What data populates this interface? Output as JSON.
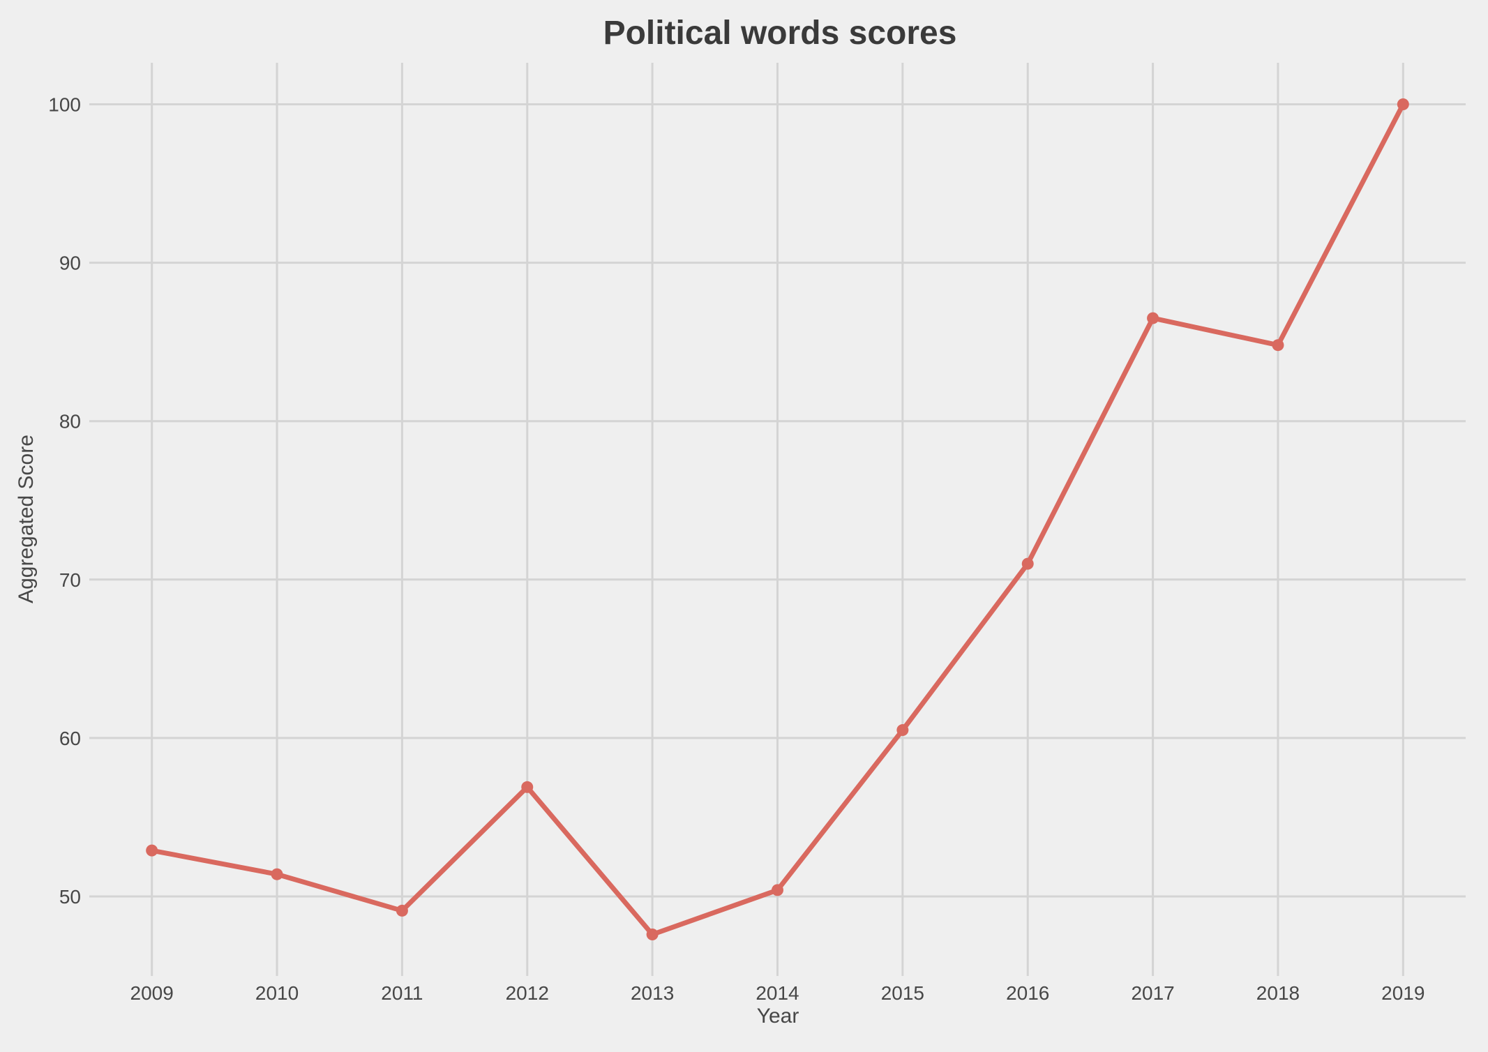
{
  "title": "Political words scores",
  "colors": {
    "background": "#EFEFEF",
    "gridline": "#D4D4D4",
    "line": "#D9695F",
    "marker": "#D9695F",
    "title_text": "#3A3A3A",
    "axis_text": "#474747",
    "tick_text": "#474747"
  },
  "chart_data": {
    "type": "line",
    "title": "Political words scores",
    "xlabel": "Year",
    "ylabel": "Aggregated Score",
    "x": [
      2009,
      2010,
      2011,
      2012,
      2013,
      2014,
      2015,
      2016,
      2017,
      2018,
      2019
    ],
    "series": [
      {
        "name": "Aggregated Score",
        "values": [
          52.9,
          51.4,
          49.1,
          56.9,
          47.6,
          50.4,
          60.5,
          71.0,
          86.5,
          84.8,
          100.0
        ]
      }
    ],
    "xticks": [
      2009,
      2010,
      2011,
      2012,
      2013,
      2014,
      2015,
      2016,
      2017,
      2018,
      2019
    ],
    "yticks": [
      50,
      60,
      70,
      80,
      90,
      100
    ],
    "xlim": [
      2008.5,
      2019.5
    ],
    "ylim": [
      44.98,
      102.62
    ],
    "grid": true,
    "legend_visible": false,
    "marker": "circle"
  }
}
